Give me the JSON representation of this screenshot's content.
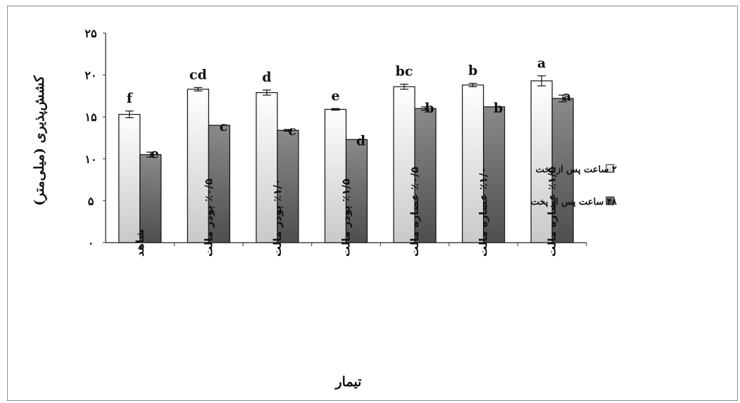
{
  "chart_data": {
    "type": "bar",
    "title": "",
    "xlabel": "تیمار",
    "ylabel": "کشش‌پذیری (میلی‌متر)",
    "ylim": [
      0,
      25
    ],
    "yticks": [
      {
        "value": 0,
        "label": "۰"
      },
      {
        "value": 5,
        "label": "۵"
      },
      {
        "value": 10,
        "label": "۱۰"
      },
      {
        "value": 15,
        "label": "۱۵"
      },
      {
        "value": 20,
        "label": "۲۰"
      },
      {
        "value": 25,
        "label": "۲۵"
      }
    ],
    "categories": [
      "شاهد",
      "٪۰/۵ پودر مالت",
      "٪۱/۰ پودر مالت",
      "٪۱/۵ پودر مالت",
      "٪۰/۵ عصاره مالت",
      "٪۱/۰ عصاره مالت",
      "٪۱/۵ عصاره مالت"
    ],
    "series": [
      {
        "name": "۲ ساعت پس از پخت",
        "color": "#e8e8e8",
        "values": [
          15.3,
          18.3,
          17.9,
          15.9,
          18.6,
          18.8,
          19.3
        ],
        "errors": [
          0.4,
          0.2,
          0.3,
          0.1,
          0.3,
          0.2,
          0.6
        ],
        "letters": [
          "f",
          "cd",
          "d",
          "e",
          "bc",
          "b",
          "a"
        ]
      },
      {
        "name": "۴۸ ساعت پس از پخت",
        "color": "#6e6e6e",
        "values": [
          10.5,
          14.0,
          13.4,
          12.3,
          16.0,
          16.2,
          17.2
        ],
        "errors": [
          0.3,
          0.0,
          0.1,
          0.0,
          0.2,
          0.0,
          0.4
        ],
        "letters": [
          "e",
          "c",
          "c",
          "d",
          "b",
          "b",
          "a"
        ]
      }
    ],
    "grid": false,
    "legend_position": "right"
  }
}
